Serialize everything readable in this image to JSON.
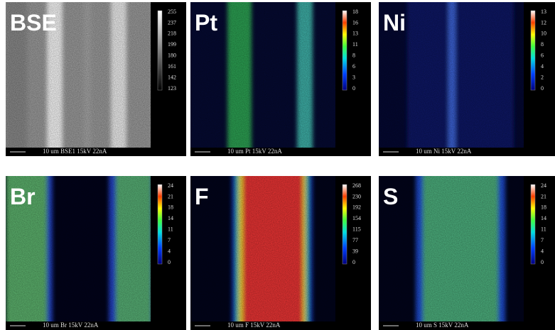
{
  "panels": [
    {
      "label": "BSE",
      "ticks": [
        255,
        237,
        218,
        199,
        180,
        161,
        142,
        123
      ],
      "footer": "10 um BSE1 15kV 22nA"
    },
    {
      "label": "Pt",
      "ticks": [
        18,
        16,
        13,
        11,
        8,
        6,
        3,
        0
      ],
      "footer": "10 um Pt 15kV 22nA"
    },
    {
      "label": "Ni",
      "ticks": [
        13,
        12,
        10,
        8,
        6,
        4,
        2,
        0
      ],
      "footer": "10 um Ni 15kV 22nA"
    },
    {
      "label": "Br",
      "ticks": [
        24,
        21,
        18,
        14,
        11,
        7,
        4,
        0
      ],
      "footer": "10 um Br 15kV 22nA"
    },
    {
      "label": "F",
      "ticks": [
        268,
        230,
        192,
        154,
        115,
        77,
        39,
        0
      ],
      "footer": "10 um F 15kV 22nA"
    },
    {
      "label": "S",
      "ticks": [
        24,
        21,
        18,
        14,
        11,
        7,
        4,
        0
      ],
      "footer": "10 um S 15kV 22nA"
    }
  ]
}
